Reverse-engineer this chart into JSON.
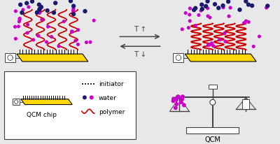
{
  "bg_color": "#e8e8e8",
  "white": "#ffffff",
  "black": "#000000",
  "yellow": "#FFD700",
  "dark_blue": "#191970",
  "magenta": "#CC00CC",
  "red": "#CC0000",
  "dark_gray": "#404040",
  "arrow_color": "#444444",
  "T_up_label": "T ↑",
  "T_down_label": "T ↓",
  "legend_labels": [
    "initiator",
    "water",
    "polymer"
  ],
  "qcm_label": "QCM chip",
  "qcm_bottom_label": "QCM"
}
